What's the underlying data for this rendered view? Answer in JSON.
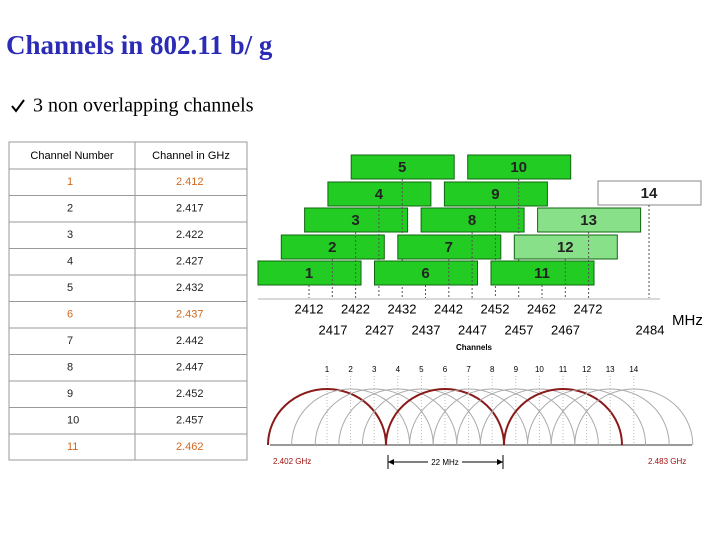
{
  "header": {
    "title": "Channels in 802.11 b/ g",
    "bullet": "3 non overlapping channels"
  },
  "table": {
    "columns": [
      "Channel Number",
      "Channel in GHz"
    ],
    "rows": [
      [
        "1",
        "2.412"
      ],
      [
        "2",
        "2.417"
      ],
      [
        "3",
        "2.422"
      ],
      [
        "4",
        "2.427"
      ],
      [
        "5",
        "2.432"
      ],
      [
        "6",
        "2.437"
      ],
      [
        "7",
        "2.442"
      ],
      [
        "8",
        "2.447"
      ],
      [
        "9",
        "2.452"
      ],
      [
        "10",
        "2.457"
      ],
      [
        "11",
        "2.462"
      ]
    ],
    "highlighted_rows": [
      0,
      5,
      10
    ],
    "highlight_color": "#d2691e"
  },
  "diagram": {
    "boxes": [
      {
        "label": "1",
        "color": "#22cc22"
      },
      {
        "label": "2",
        "color": "#22cc22"
      },
      {
        "label": "3",
        "color": "#22cc22"
      },
      {
        "label": "4",
        "color": "#22cc22"
      },
      {
        "label": "5",
        "color": "#22cc22"
      },
      {
        "label": "6",
        "color": "#22cc22"
      },
      {
        "label": "7",
        "color": "#22cc22"
      },
      {
        "label": "8",
        "color": "#22cc22"
      },
      {
        "label": "9",
        "color": "#22cc22"
      },
      {
        "label": "10",
        "color": "#22cc22"
      },
      {
        "label": "11",
        "color": "#22cc22"
      },
      {
        "label": "12",
        "color": "#88e088"
      },
      {
        "label": "13",
        "color": "#88e088"
      },
      {
        "label": "14",
        "color": "#ffffff"
      }
    ],
    "frequencies_top": [
      "2412",
      "2422",
      "2432",
      "2442",
      "2452",
      "2462",
      "2472"
    ],
    "frequencies_bottom": [
      "2417",
      "2427",
      "2437",
      "2447",
      "2457",
      "2467",
      "2484"
    ],
    "unit": "MHz",
    "axis_label": "Channels",
    "channel_numbers": [
      "1",
      "2",
      "3",
      "4",
      "5",
      "6",
      "7",
      "8",
      "9",
      "10",
      "11",
      "12",
      "13",
      "14"
    ],
    "non_overlapping": [
      0,
      5,
      10
    ],
    "start_label": "2.402 GHz",
    "end_label": "2.483 GHz",
    "width_label": "22 MHz"
  }
}
